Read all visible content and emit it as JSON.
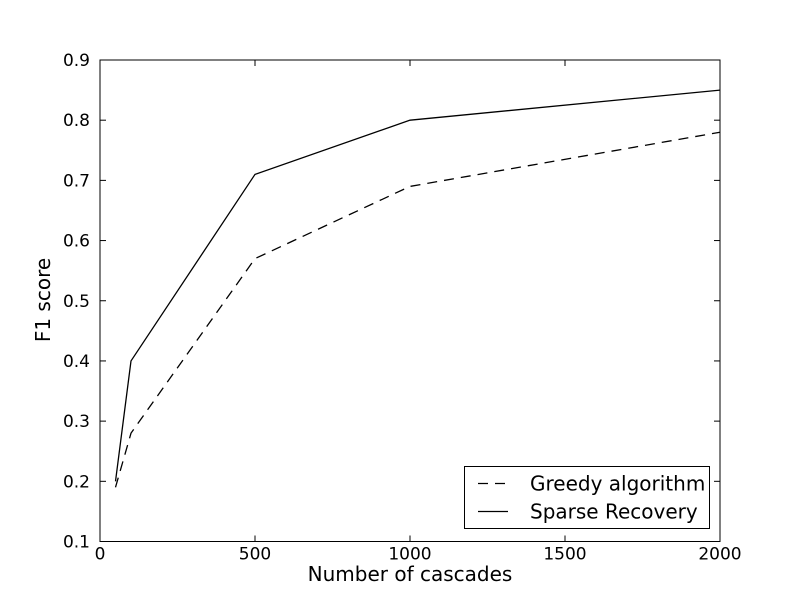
{
  "figure": {
    "background_color": "#ffffff",
    "foreground_color": "#000000"
  },
  "chart_data": {
    "type": "line",
    "title": "",
    "xlabel": "Number of cascades",
    "ylabel": "F1 score",
    "xlim": [
      0,
      2000
    ],
    "ylim": [
      0.1,
      0.9
    ],
    "xticks": [
      0,
      500,
      1000,
      1500,
      2000
    ],
    "xtick_labels": [
      "0",
      "500",
      "1000",
      "1500",
      "2000"
    ],
    "yticks": [
      0.1,
      0.2,
      0.3,
      0.4,
      0.5,
      0.6,
      0.7,
      0.8,
      0.9
    ],
    "ytick_labels": [
      "0.1",
      "0.2",
      "0.3",
      "0.4",
      "0.5",
      "0.6",
      "0.7",
      "0.8",
      "0.9"
    ],
    "grid": false,
    "line_color": "#000000",
    "x": [
      50,
      100,
      500,
      1000,
      2000
    ],
    "series": [
      {
        "name": "Greedy algorithm",
        "line_style": "dashed",
        "values": [
          0.19,
          0.28,
          0.57,
          0.69,
          0.78
        ]
      },
      {
        "name": "Sparse Recovery",
        "line_style": "solid",
        "values": [
          0.2,
          0.4,
          0.71,
          0.8,
          0.85
        ]
      }
    ],
    "legend": {
      "position": "lower right",
      "entries": [
        {
          "label": "Greedy algorithm",
          "line_style": "dashed"
        },
        {
          "label": "Sparse Recovery",
          "line_style": "solid"
        }
      ]
    }
  }
}
